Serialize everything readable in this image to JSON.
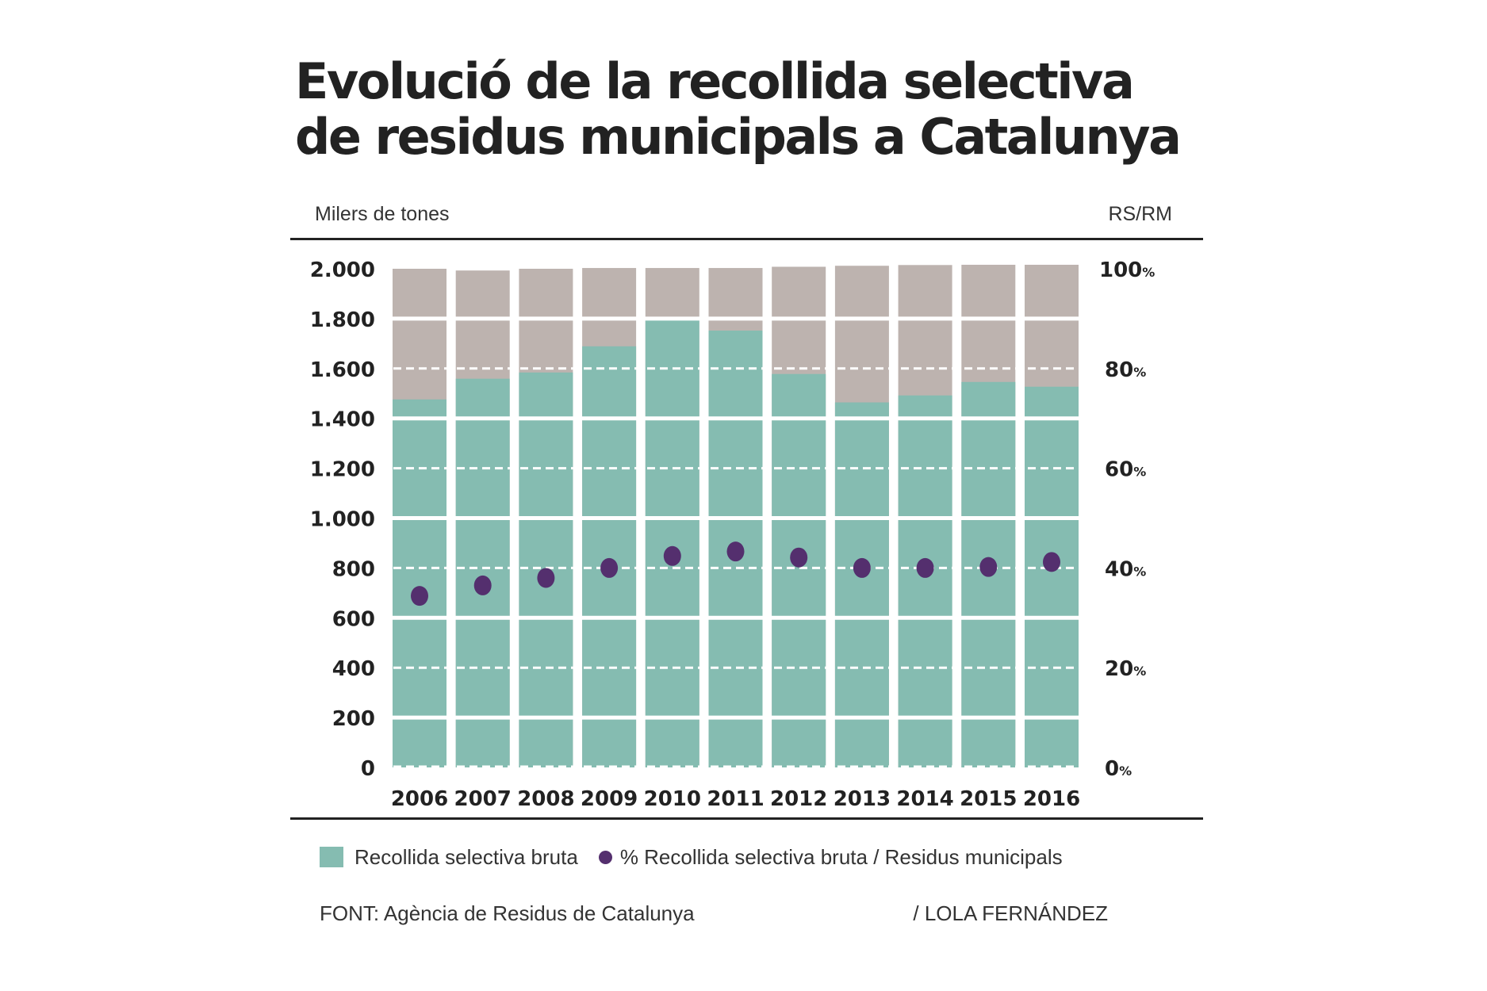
{
  "title_line1": "Evolució de la recollida selectiva",
  "title_line2": "de residus municipals a Catalunya",
  "left_unit_label": "Milers de tones",
  "right_unit_label": "RS/RM",
  "legend": {
    "bars_label": "Recollida selectiva bruta",
    "dots_label": "% Recollida selectiva bruta / Residus municipals"
  },
  "footer": {
    "source": "FONT: Agència de Residus de Catalunya",
    "author": "/ LOLA FERNÁNDEZ"
  },
  "colors": {
    "selective_bar": "#85bcb1",
    "total_bar": "#bdb3af",
    "dot": "#542f6e",
    "text": "#222222"
  },
  "chart_data": {
    "type": "bar",
    "title": "Evolució de la recollida selectiva de residus municipals a Catalunya",
    "xlabel": "",
    "ylabel": "Milers de tones",
    "y2label": "RS/RM",
    "categories": [
      "2006",
      "2007",
      "2008",
      "2009",
      "2010",
      "2011",
      "2012",
      "2013",
      "2014",
      "2015",
      "2016"
    ],
    "series": [
      {
        "name": "Residus municipals",
        "type": "bar",
        "values": [
          2000,
          1993,
          2000,
          2003,
          2003,
          2003,
          2008,
          2012,
          2015,
          2016,
          2016
        ]
      },
      {
        "name": "Recollida selectiva bruta",
        "type": "bar",
        "values": [
          1476,
          1559,
          1584,
          1689,
          1797,
          1752,
          1578,
          1464,
          1492,
          1546,
          1527
        ]
      },
      {
        "name": "% Recollida selectiva bruta / Residus municipals",
        "type": "scatter",
        "axis": "right",
        "values": [
          34.4,
          36.5,
          38.0,
          40.0,
          42.4,
          43.3,
          42.1,
          40.0,
          40.0,
          40.2,
          41.2
        ]
      }
    ],
    "ylim": [
      0,
      2000
    ],
    "y2lim": [
      0,
      100
    ],
    "yticks": [
      "0",
      "200",
      "400",
      "600",
      "800",
      "1.000",
      "1.200",
      "1.400",
      "1.600",
      "1.800",
      "2.000"
    ],
    "y2ticks": [
      "0",
      "20",
      "40",
      "60",
      "80",
      "100"
    ],
    "y2tick_suffix": "%",
    "grid": true,
    "legend_position": "bottom-left"
  }
}
